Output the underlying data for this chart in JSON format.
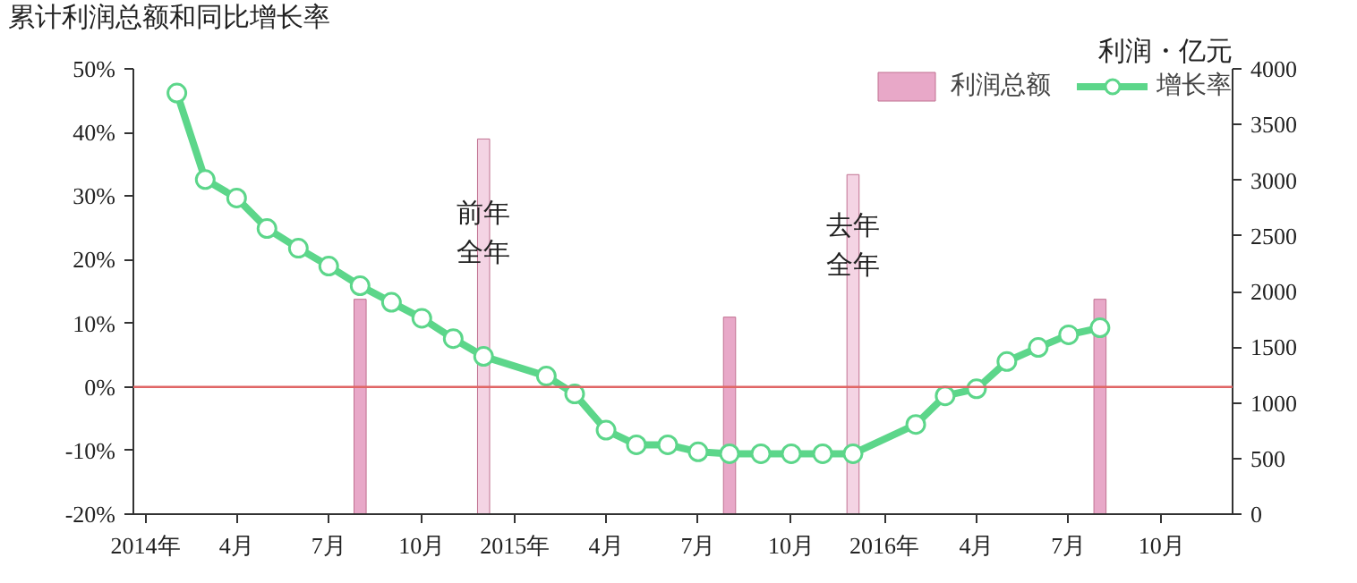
{
  "chart_data": {
    "type": "line",
    "title": "累计利润总额和同比增长率",
    "y2label": "利润・亿元",
    "xlim": [
      "2013-12-20",
      "2016-12-10"
    ],
    "xticks": [
      {
        "value": "2014-01",
        "label": "2014年"
      },
      {
        "value": "2014-04",
        "label": "4月"
      },
      {
        "value": "2014-07",
        "label": "7月"
      },
      {
        "value": "2014-10",
        "label": "10月"
      },
      {
        "value": "2015-01",
        "label": "2015年"
      },
      {
        "value": "2015-04",
        "label": "4月"
      },
      {
        "value": "2015-07",
        "label": "7月"
      },
      {
        "value": "2015-10",
        "label": "10月"
      },
      {
        "value": "2016-01",
        "label": "2016年"
      },
      {
        "value": "2016-04",
        "label": "4月"
      },
      {
        "value": "2016-07",
        "label": "7月"
      },
      {
        "value": "2016-10",
        "label": "10月"
      }
    ],
    "ylim": [
      -20,
      50
    ],
    "yticks": [
      {
        "value": -20,
        "label": "-20%"
      },
      {
        "value": -10,
        "label": "-10%"
      },
      {
        "value": 0,
        "label": "0%"
      },
      {
        "value": 10,
        "label": "10%"
      },
      {
        "value": 20,
        "label": "20%"
      },
      {
        "value": 30,
        "label": "30%"
      },
      {
        "value": 40,
        "label": "40%"
      },
      {
        "value": 50,
        "label": "50%"
      }
    ],
    "y2lim": [
      0,
      4000
    ],
    "y2ticks": [
      0,
      500,
      1000,
      1500,
      2000,
      2500,
      3000,
      3500,
      4000
    ],
    "grid": false,
    "legend": "top right",
    "marker": "circle",
    "line_style": "solid",
    "ref_lines": [
      {
        "axis": "y",
        "value": 0,
        "color": "#e06666"
      }
    ],
    "annotations": [
      {
        "text": "前年全年",
        "x": "2014-12",
        "y": 24
      },
      {
        "text": "去年全年",
        "x": "2015-12",
        "y": 22
      }
    ],
    "series": [
      {
        "name": "利润总额",
        "type": "bar",
        "axis": "y2",
        "color": "#e8a8c8",
        "colors": [
          "#e8a8c8",
          "#f4d4e4",
          "#e8a8c8",
          "#f4d4e4",
          "#e8a8c8"
        ],
        "x": [
          "2014-08",
          "2014-12",
          "2015-08",
          "2015-12",
          "2016-08"
        ],
        "values": [
          1930,
          3370,
          1770,
          3050,
          1930
        ]
      },
      {
        "name": "增长率",
        "color": "#5cd68a",
        "x": [
          "2014-02",
          "2014-03",
          "2014-04",
          "2014-05",
          "2014-06",
          "2014-07",
          "2014-08",
          "2014-09",
          "2014-10",
          "2014-11",
          "2014-12",
          "2015-02",
          "2015-03",
          "2015-04",
          "2015-05",
          "2015-06",
          "2015-07",
          "2015-08",
          "2015-09",
          "2015-10",
          "2015-11",
          "2015-12",
          "2016-02",
          "2016-03",
          "2016-04",
          "2016-05",
          "2016-06",
          "2016-07",
          "2016-08"
        ],
        "values": [
          46.2,
          32.6,
          29.7,
          24.9,
          21.8,
          19.0,
          15.9,
          13.3,
          10.8,
          7.6,
          4.8,
          1.7,
          -1.1,
          -6.8,
          -9.1,
          -9.1,
          -10.2,
          -10.5,
          -10.5,
          -10.5,
          -10.5,
          -10.5,
          -5.9,
          -1.4,
          -0.3,
          4.0,
          6.2,
          8.2,
          9.3
        ]
      }
    ]
  }
}
